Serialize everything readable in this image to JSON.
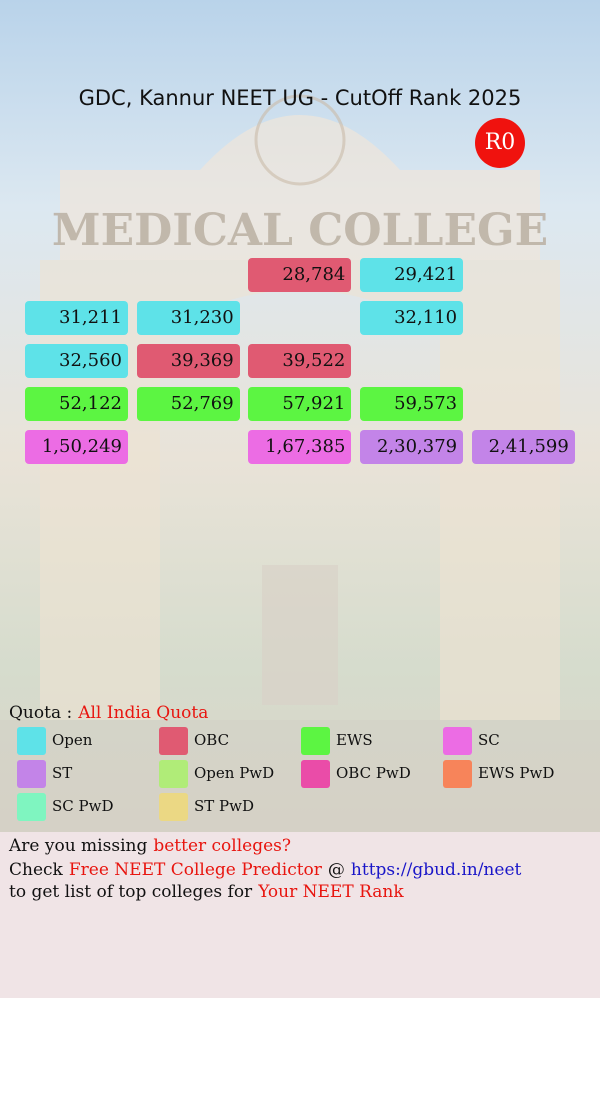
{
  "header": {
    "title": "GDC, Kannur NEET UG - CutOff Rank 2025",
    "badge": "R0"
  },
  "grid": {
    "rows": [
      [
        null,
        null,
        {
          "text": "28,784",
          "color": "#e05a72"
        },
        {
          "text": "29,421",
          "color": "#5ee2e8"
        },
        null
      ],
      [
        {
          "text": "31,211",
          "color": "#5ee2e8"
        },
        {
          "text": "31,230",
          "color": "#5ee2e8"
        },
        null,
        {
          "text": "32,110",
          "color": "#5ee2e8"
        },
        null
      ],
      [
        {
          "text": "32,560",
          "color": "#5ee2e8"
        },
        {
          "text": "39,369",
          "color": "#e05a72"
        },
        {
          "text": "39,522",
          "color": "#e05a72"
        },
        null,
        null
      ],
      [
        {
          "text": "52,122",
          "color": "#5cf542"
        },
        {
          "text": "52,769",
          "color": "#5cf542"
        },
        {
          "text": "57,921",
          "color": "#5cf542"
        },
        {
          "text": "59,573",
          "color": "#5cf542"
        },
        null
      ],
      [
        {
          "text": "1,50,249",
          "color": "#ec6ce4"
        },
        null,
        {
          "text": "1,67,385",
          "color": "#ec6ce4"
        },
        {
          "text": "2,30,379",
          "color": "#c384e8"
        },
        {
          "text": "2,41,599",
          "color": "#c384e8"
        }
      ]
    ]
  },
  "quota": {
    "label": "Quota :",
    "value": "All India Quota"
  },
  "legend": [
    {
      "label": "Open",
      "color": "#5ee2e8"
    },
    {
      "label": "OBC",
      "color": "#e05a72"
    },
    {
      "label": "EWS",
      "color": "#5cf542"
    },
    {
      "label": "SC",
      "color": "#ec6ce4"
    },
    {
      "label": "ST",
      "color": "#c384e8"
    },
    {
      "label": "Open PwD",
      "color": "#b0ec78"
    },
    {
      "label": "OBC PwD",
      "color": "#ea4ca8"
    },
    {
      "label": "EWS PwD",
      "color": "#f7845a"
    },
    {
      "label": "SC PwD",
      "color": "#7ff5c0"
    },
    {
      "label": "ST PwD",
      "color": "#ebd884"
    }
  ],
  "footer": {
    "line1": {
      "text": "Are you missing",
      "highlight": "better colleges?"
    },
    "line2": {
      "prefix": "Check",
      "highlight": "Free NEET College Predictor",
      "sep": "@",
      "link": "https://gbud.in/neet"
    },
    "line3": {
      "text": "to get list of top colleges for",
      "highlight": "Your NEET Rank"
    }
  }
}
